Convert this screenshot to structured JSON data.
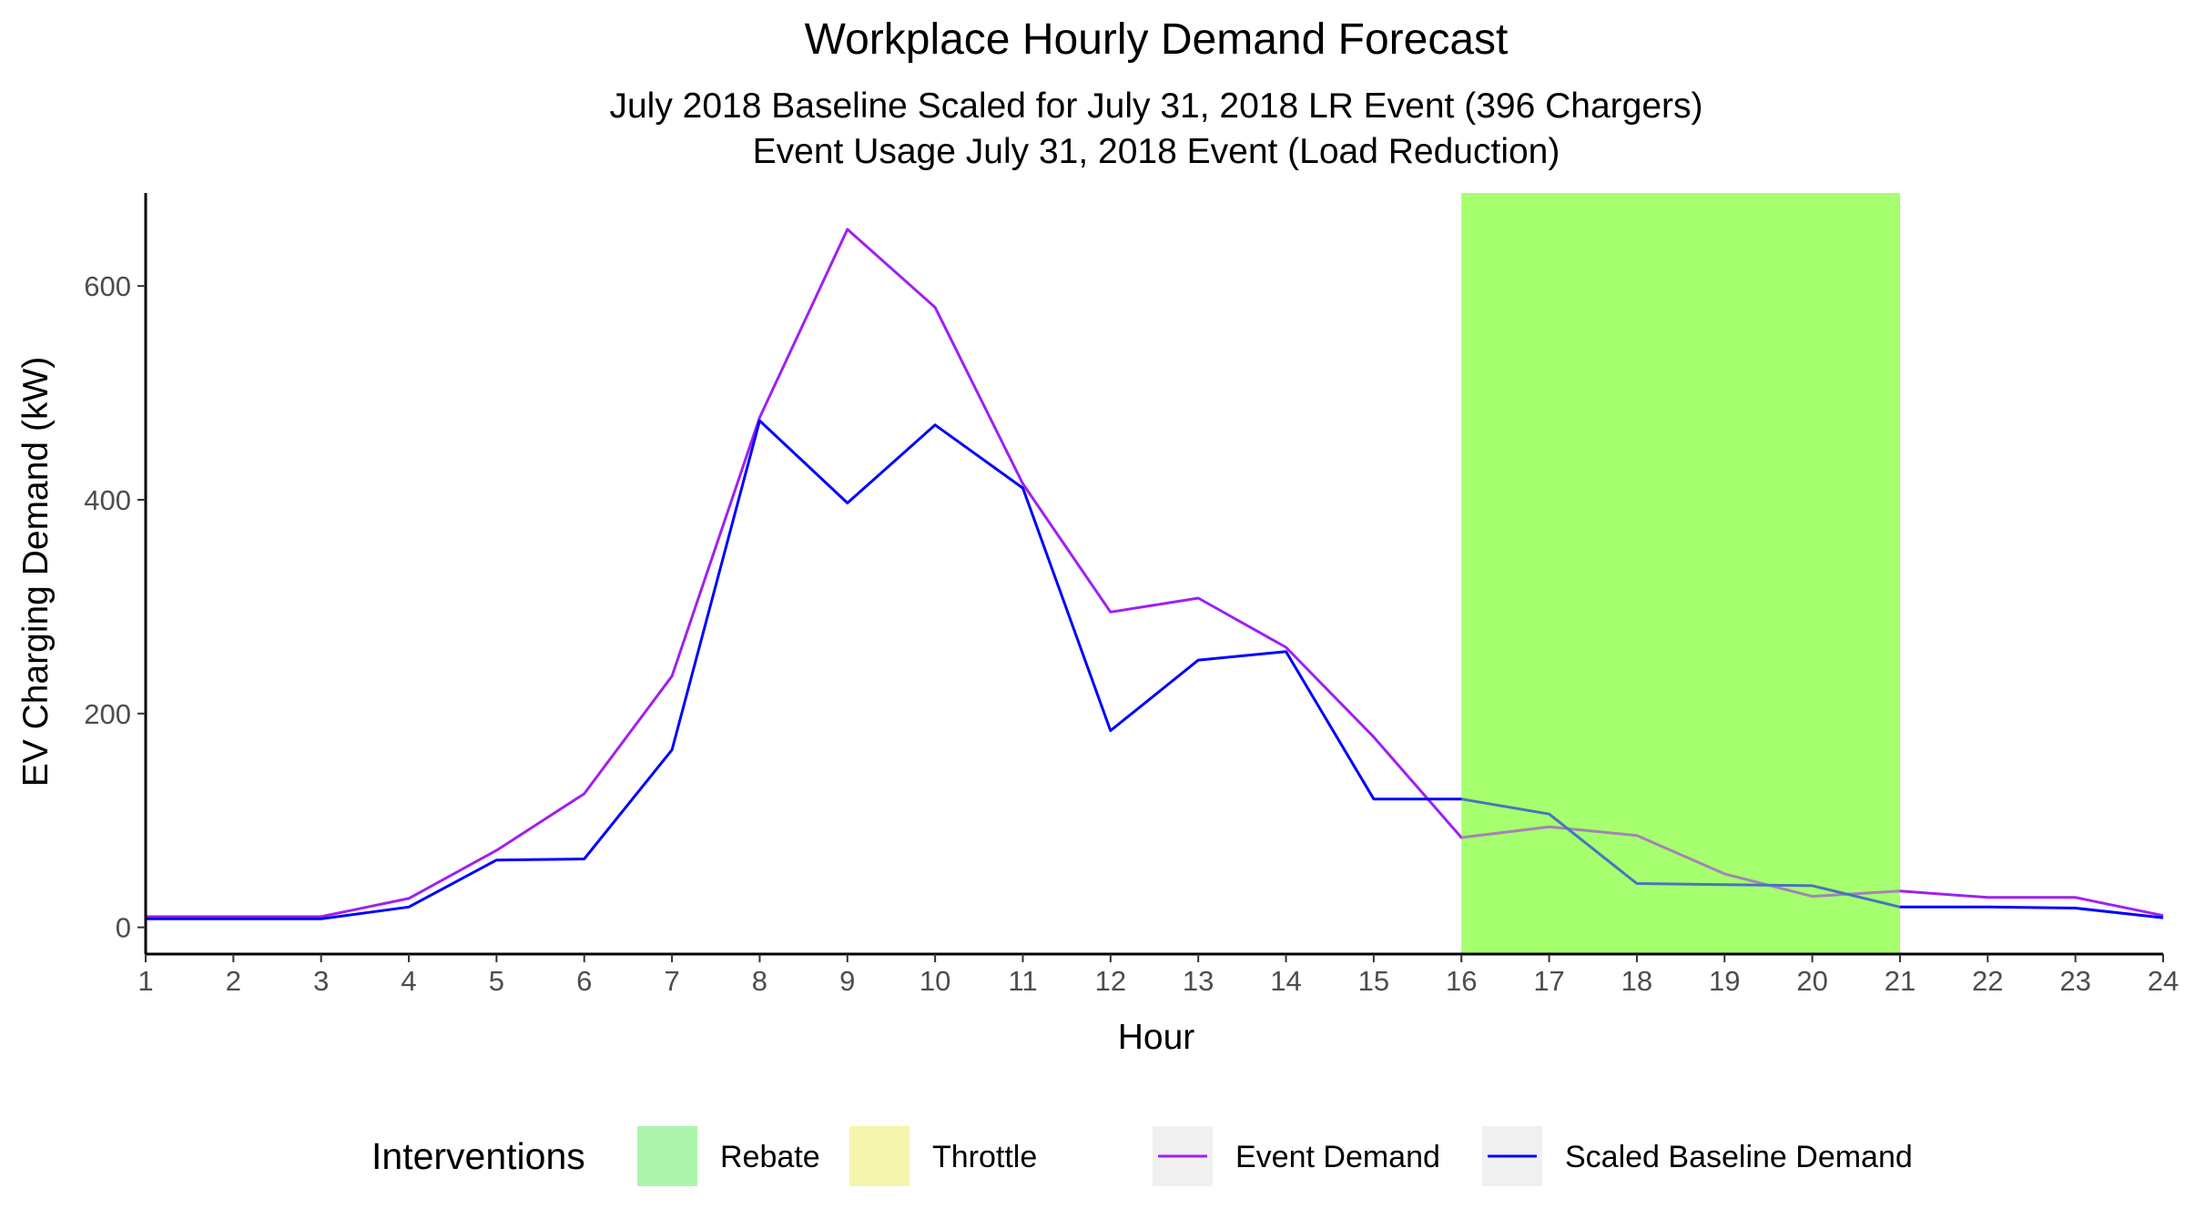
{
  "chart_data": {
    "type": "line",
    "title": "Workplace Hourly Demand Forecast",
    "subtitle_lines": [
      "July 2018 Baseline Scaled for July 31, 2018 LR Event (396 Chargers)",
      "Event Usage July 31, 2018 Event (Load Reduction)"
    ],
    "xlabel": "Hour",
    "ylabel": "EV Charging Demand (kW)",
    "xlim": [
      1,
      24
    ],
    "ylim": [
      -25,
      687
    ],
    "x_ticks": [
      1,
      2,
      3,
      4,
      5,
      6,
      7,
      8,
      9,
      10,
      11,
      12,
      13,
      14,
      15,
      16,
      17,
      18,
      19,
      20,
      21,
      22,
      23,
      24
    ],
    "y_ticks": [
      0,
      200,
      400,
      600
    ],
    "x": [
      1,
      2,
      3,
      4,
      5,
      6,
      7,
      8,
      9,
      10,
      11,
      12,
      13,
      14,
      15,
      16,
      17,
      18,
      19,
      20,
      21,
      22,
      23,
      24
    ],
    "series": [
      {
        "name": "Event Demand",
        "color": "#a020f0",
        "values": [
          10,
          10,
          10,
          27,
          72,
          125,
          235,
          477,
          653,
          580,
          415,
          295,
          308,
          262,
          178,
          84,
          94,
          86,
          50,
          29,
          34,
          28,
          28,
          11
        ]
      },
      {
        "name": "Scaled Baseline Demand",
        "color": "#0000ff",
        "values": [
          8,
          8,
          8,
          19,
          63,
          64,
          166,
          474,
          397,
          470,
          411,
          184,
          250,
          258,
          120,
          120,
          106,
          41,
          40,
          39,
          19,
          19,
          18,
          9
        ]
      }
    ],
    "interventions": [
      {
        "name": "Rebate",
        "start": 16,
        "end": 21,
        "color": "#a6ff6e"
      }
    ],
    "legend": {
      "title": "Interventions",
      "position": "bottom",
      "items": [
        {
          "label": "Rebate",
          "kind": "fill",
          "color": "#adf5ad"
        },
        {
          "label": "Throttle",
          "kind": "fill",
          "color": "#f5f5ad"
        },
        {
          "label": "Event Demand",
          "kind": "line",
          "color": "#a020f0"
        },
        {
          "label": "Scaled Baseline Demand",
          "kind": "line",
          "color": "#0000ff"
        }
      ]
    },
    "grid": false
  }
}
